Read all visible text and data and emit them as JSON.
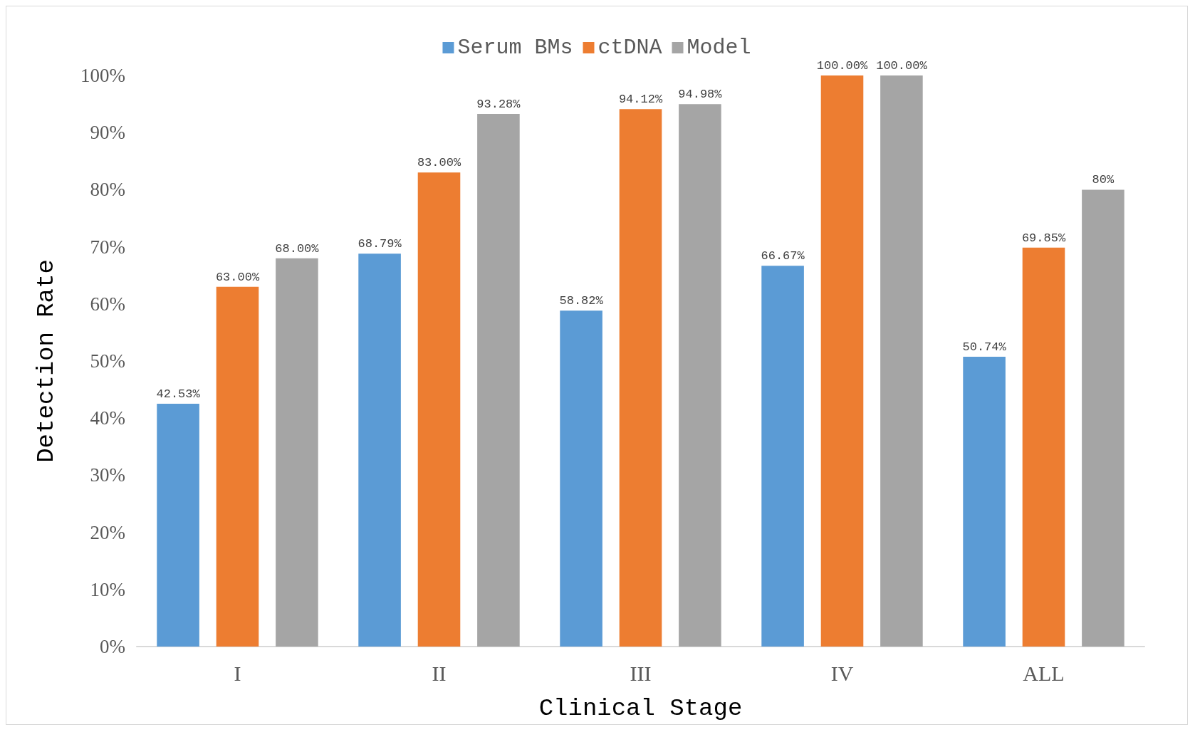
{
  "chart_data": {
    "type": "bar",
    "xlabel": "Clinical Stage",
    "ylabel": "Detection Rate",
    "categories": [
      "I",
      "II",
      "III",
      "IV",
      "ALL"
    ],
    "series": [
      {
        "name": "Serum BMs",
        "color": "#5b9bd5",
        "values": [
          42.53,
          68.79,
          58.82,
          66.67,
          50.74
        ],
        "value_labels": [
          "42.53%",
          "68.79%",
          "58.82%",
          "66.67%",
          "50.74%"
        ]
      },
      {
        "name": "ctDNA",
        "color": "#ed7d31",
        "values": [
          63,
          83,
          94.12,
          100,
          69.85
        ],
        "value_labels": [
          "63.00%",
          "83.00%",
          "94.12%",
          "100.00%",
          "69.85%"
        ]
      },
      {
        "name": "Model",
        "color": "#a5a5a5",
        "values": [
          68,
          93.28,
          94.98,
          100,
          80
        ],
        "value_labels": [
          "68.00%",
          "93.28%",
          "94.98%",
          "100.00%",
          "80%"
        ]
      }
    ],
    "ylim": [
      0,
      100
    ],
    "yticks": [
      {
        "value": 0,
        "label": "0%"
      },
      {
        "value": 10,
        "label": "10%"
      },
      {
        "value": 20,
        "label": "20%"
      },
      {
        "value": 30,
        "label": "30%"
      },
      {
        "value": 40,
        "label": "40%"
      },
      {
        "value": 50,
        "label": "50%"
      },
      {
        "value": 60,
        "label": "60%"
      },
      {
        "value": 70,
        "label": "70%"
      },
      {
        "value": 80,
        "label": "80%"
      },
      {
        "value": 90,
        "label": "90%"
      },
      {
        "value": 100,
        "label": "100%"
      }
    ],
    "grid": false,
    "legend": "top"
  }
}
